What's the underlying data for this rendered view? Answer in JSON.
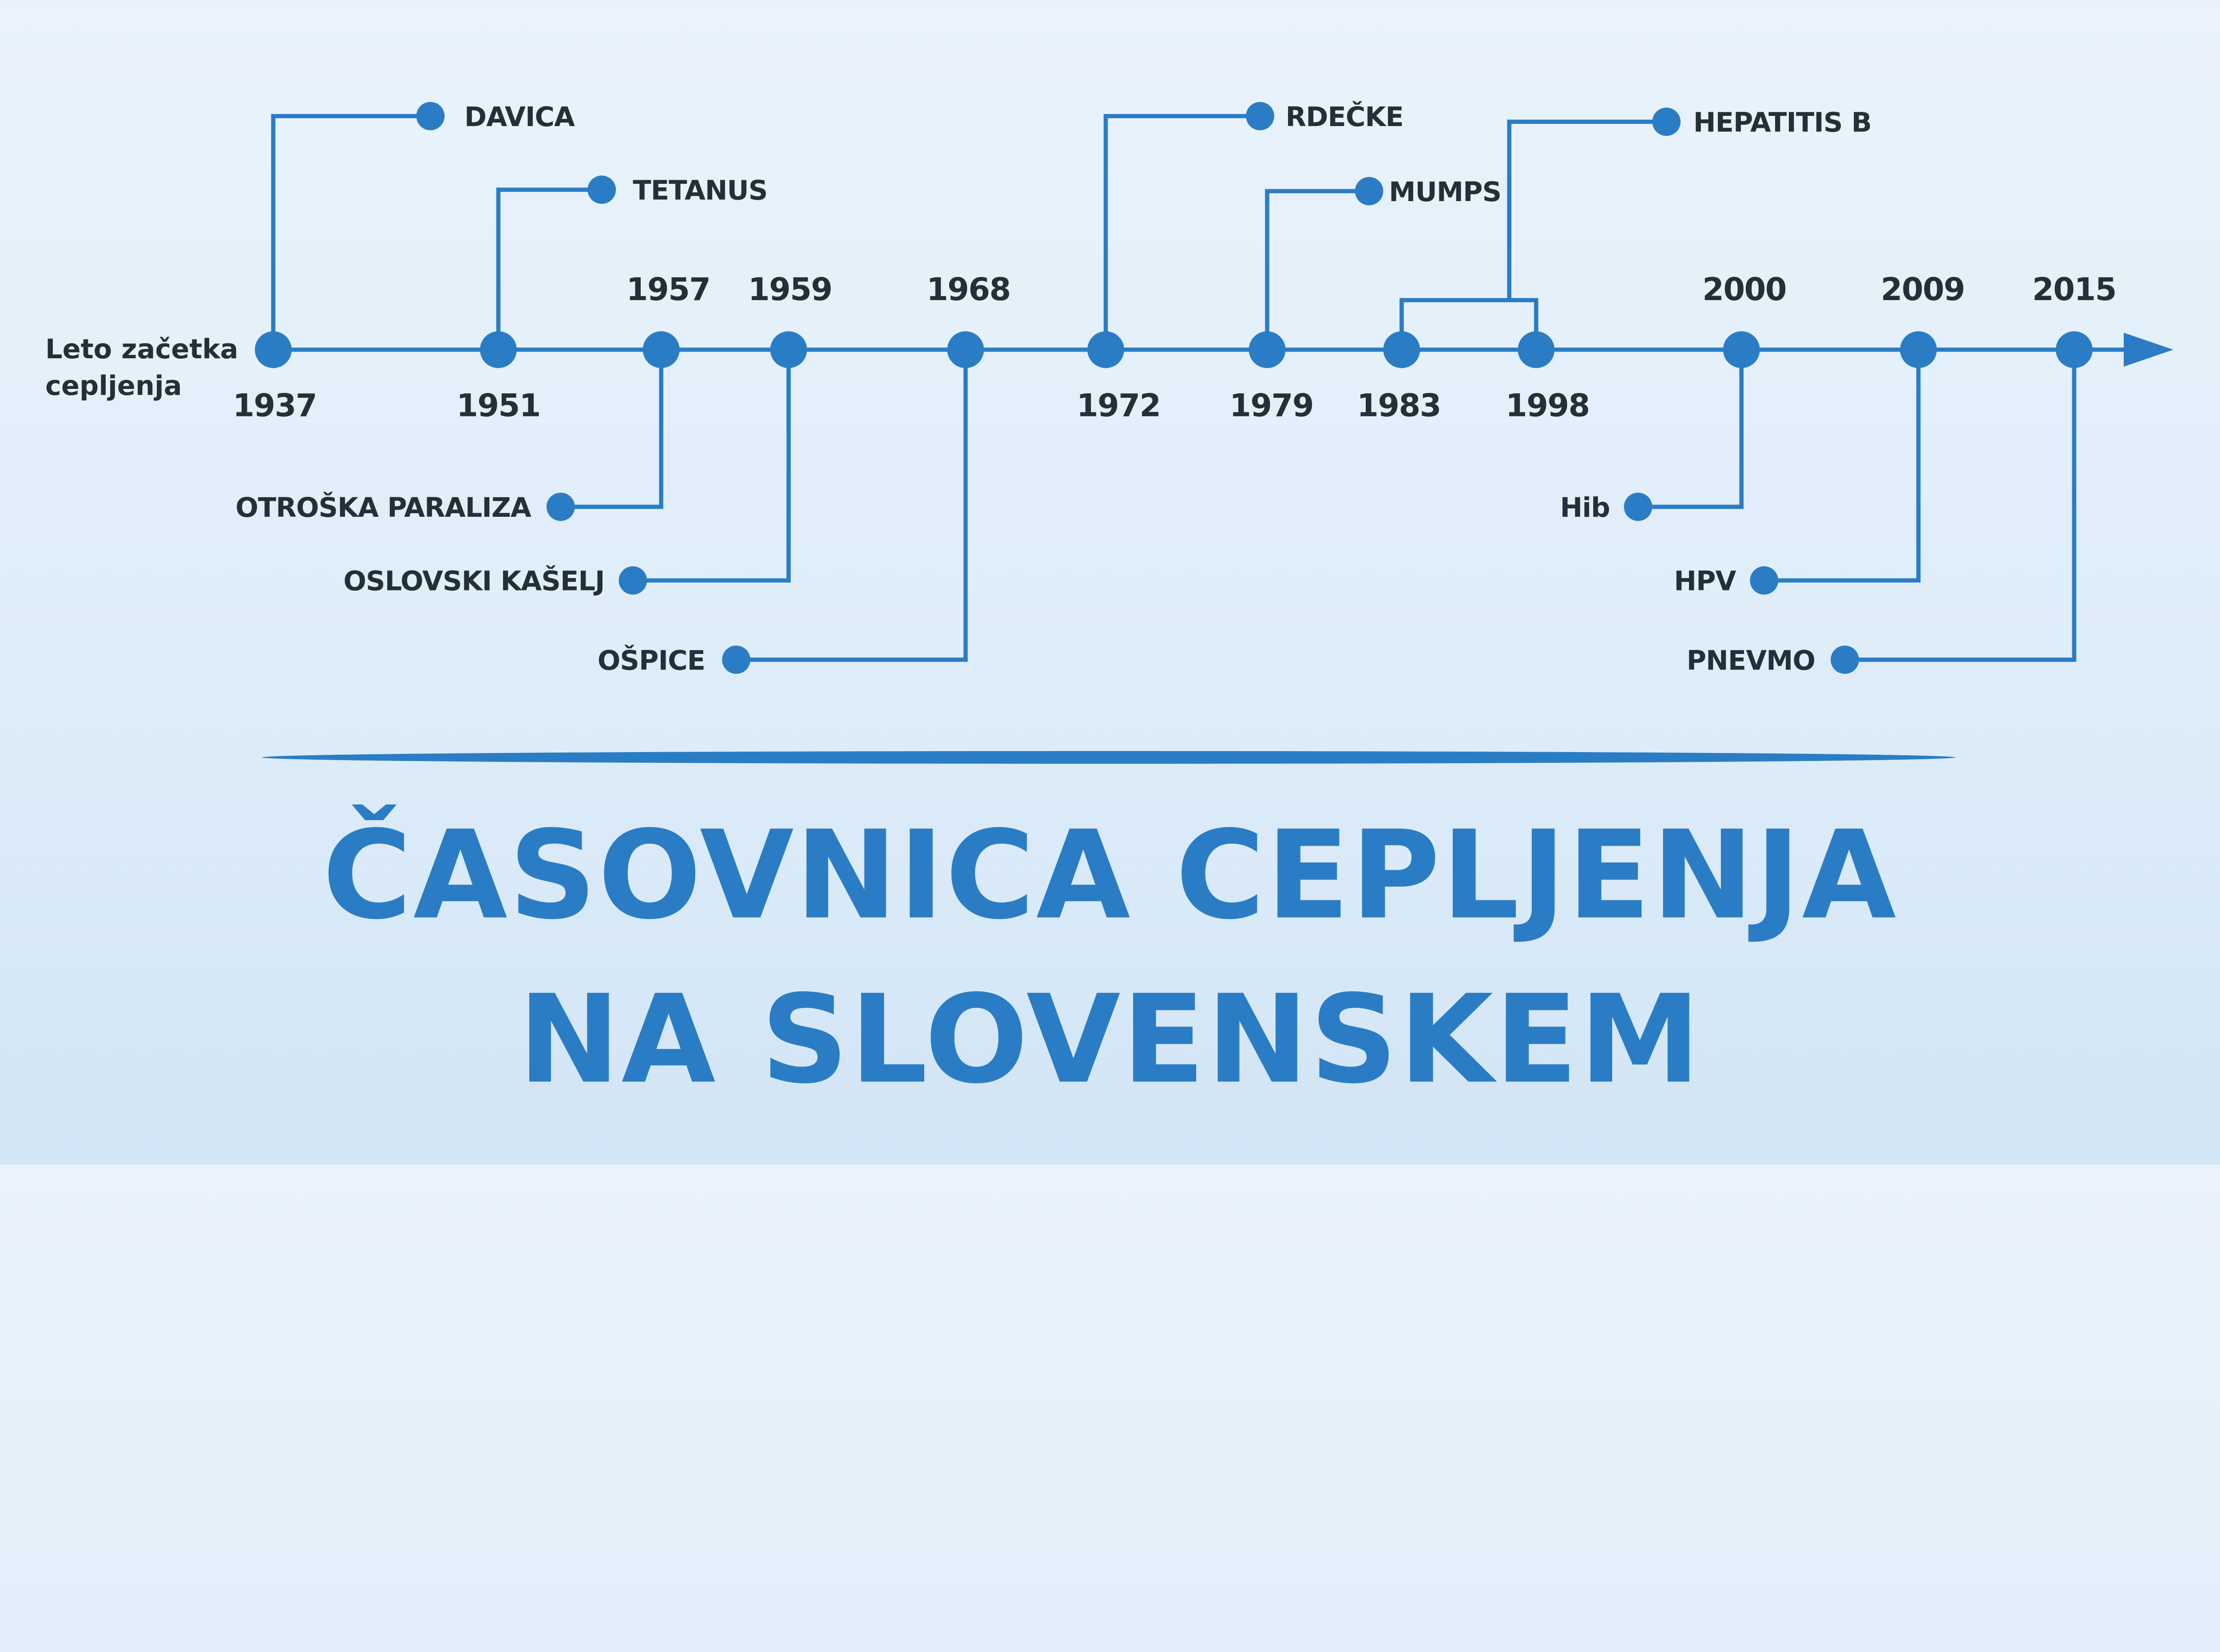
{
  "colors": {
    "accent": "#2a7dc4",
    "text": "#233038",
    "background_top": "#eaf3fc",
    "background_bottom": "#d2e5f6"
  },
  "axis_label": [
    "Leto začetka",
    "cepljenja"
  ],
  "events": [
    {
      "year": "1937",
      "vaccine": "DAVICA",
      "side": "up"
    },
    {
      "year": "1951",
      "vaccine": "TETANUS",
      "side": "up"
    },
    {
      "year": "1957",
      "vaccine": "OTROŠKA PARALIZA",
      "side": "down"
    },
    {
      "year": "1959",
      "vaccine": "OSLOVSKI KAŠELJ",
      "side": "down"
    },
    {
      "year": "1968",
      "vaccine": "OŠPICE",
      "side": "down"
    },
    {
      "year": "1972",
      "vaccine": "RDEČKE",
      "side": "up"
    },
    {
      "year": "1979",
      "vaccine": "MUMPS",
      "side": "up"
    },
    {
      "year": "1983",
      "vaccine": "HEPATITIS B",
      "side": "up"
    },
    {
      "year": "1998",
      "vaccine": "",
      "side": "up"
    },
    {
      "year": "2000",
      "vaccine": "Hib",
      "side": "down"
    },
    {
      "year": "2009",
      "vaccine": "HPV",
      "side": "down"
    },
    {
      "year": "2015",
      "vaccine": "PNEVMO",
      "side": "down"
    }
  ],
  "title": {
    "line1": "ČASOVNICA CEPLJENJA",
    "line2": "NA SLOVENSKEM"
  }
}
